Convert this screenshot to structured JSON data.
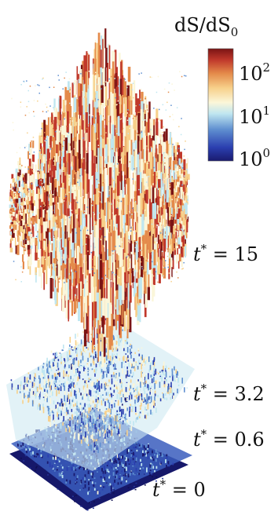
{
  "colorbar": {
    "title": "dS/dS",
    "title_subscript": "0",
    "ticks": [
      {
        "base": "10",
        "exp": "2",
        "value": 100
      },
      {
        "base": "10",
        "exp": "1",
        "value": 10
      },
      {
        "base": "10",
        "exp": "0",
        "value": 1
      }
    ],
    "scale": "log",
    "range": [
      1,
      200
    ],
    "colormap": [
      "#1a1a6e",
      "#2b3fb0",
      "#5f8fd0",
      "#bfe6f0",
      "#fbf6d9",
      "#f7d08a",
      "#e48a4a",
      "#c0382b",
      "#7a1414"
    ]
  },
  "surfaces": [
    {
      "time_label": "t",
      "sup": "*",
      "eq": " = ",
      "value": "15"
    },
    {
      "time_label": "t",
      "sup": "*",
      "eq": " = ",
      "value": "3.2"
    },
    {
      "time_label": "t",
      "sup": "*",
      "eq": " = ",
      "value": "0.6"
    },
    {
      "time_label": "t",
      "sup": "*",
      "eq": " = ",
      "value": "0"
    }
  ]
}
